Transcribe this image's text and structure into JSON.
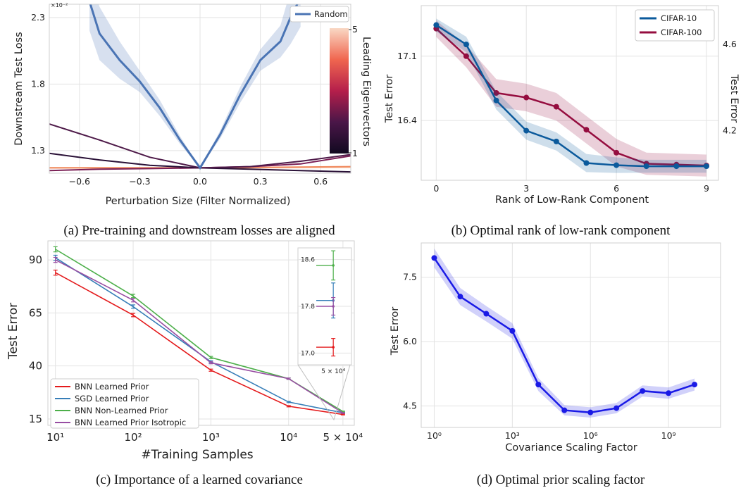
{
  "captions": {
    "a": "(a) Pre-training and downstream losses are aligned",
    "b": "(b) Optimal rank of low-rank component",
    "c": "(c) Importance of a learned covariance",
    "d": "(d) Optimal prior scaling factor"
  },
  "chart_data": [
    {
      "id": "a",
      "type": "line",
      "title": "",
      "xlabel": "Perturbation Size (Filter Normalized)",
      "ylabel": "Downstream Test Loss",
      "y_exponent_label": "×10⁻²",
      "xlim": [
        -0.75,
        0.75
      ],
      "ylim": [
        1.13,
        2.4
      ],
      "xticks": [
        -0.6,
        -0.3,
        0.0,
        0.3,
        0.6
      ],
      "xtick_labels": [
        "−0.6",
        "−0.3",
        "0.0",
        "0.3",
        "0.6"
      ],
      "yticks": [
        1.3,
        1.8,
        2.3
      ],
      "ytick_labels": [
        "1.3",
        "1.8",
        "2.3"
      ],
      "legend": [
        "Random"
      ],
      "colorbar": {
        "label": "Leading Eigenvectors",
        "min": 1,
        "max": 5,
        "tick_labels": [
          "1",
          "5"
        ]
      },
      "series": [
        {
          "name": "Random",
          "color": "#4a74b4",
          "x": [
            -0.55,
            -0.5,
            -0.4,
            -0.3,
            -0.2,
            -0.1,
            0.0,
            0.1,
            0.2,
            0.3,
            0.4,
            0.45,
            0.5
          ],
          "y": [
            2.42,
            2.18,
            1.98,
            1.82,
            1.62,
            1.38,
            1.17,
            1.42,
            1.72,
            1.98,
            2.12,
            2.3,
            2.45
          ],
          "band": [
            0.22,
            0.2,
            0.14,
            0.08,
            0.06,
            0.03,
            0.0,
            0.03,
            0.06,
            0.08,
            0.12,
            0.2,
            0.22
          ]
        },
        {
          "color": "#4e1a49",
          "x": [
            -0.75,
            -0.5,
            -0.25,
            0.0,
            0.25,
            0.5,
            0.75
          ],
          "y": [
            1.5,
            1.38,
            1.25,
            1.17,
            1.18,
            1.22,
            1.27
          ]
        },
        {
          "color": "#2a1137",
          "x": [
            -0.75,
            -0.5,
            -0.25,
            0.0,
            0.25,
            0.5,
            0.75
          ],
          "y": [
            1.28,
            1.23,
            1.19,
            1.17,
            1.16,
            1.15,
            1.14
          ]
        },
        {
          "color": "#7a1f55",
          "x": [
            -0.75,
            -0.5,
            -0.25,
            0.0,
            0.25,
            0.5,
            0.75
          ],
          "y": [
            1.15,
            1.16,
            1.165,
            1.17,
            1.18,
            1.2,
            1.26
          ]
        },
        {
          "color": "#f08a5f",
          "x": [
            -0.75,
            0.0,
            0.75
          ],
          "y": [
            1.17,
            1.17,
            1.18
          ]
        },
        {
          "color": "#f6c3a3",
          "x": [
            -0.75,
            0.0,
            0.75
          ],
          "y": [
            1.172,
            1.17,
            1.175
          ]
        }
      ]
    },
    {
      "id": "b",
      "type": "line",
      "title": "",
      "xlabel": "Rank of Low-Rank Component",
      "ylabel": "Test Error",
      "ylabel_right": "Test Error",
      "xlim": [
        -0.5,
        9.4
      ],
      "xticks": [
        0,
        3,
        6,
        9
      ],
      "xtick_labels": [
        "0",
        "3",
        "6",
        "9"
      ],
      "ylim": [
        15.75,
        17.65
      ],
      "yticks": [
        16.4,
        17.1
      ],
      "ytick_labels": [
        "16.4",
        "17.1"
      ],
      "ylim_right": [
        3.97,
        4.78
      ],
      "yticks_right": [
        4.2,
        4.6
      ],
      "ytick_labels_right": [
        "4.2",
        "4.6"
      ],
      "legend": [
        "CIFAR-10",
        "CIFAR-100"
      ],
      "series": [
        {
          "name": "CIFAR-10",
          "axis": "right",
          "color": "#0b5a9c",
          "x": [
            0,
            1,
            2,
            3,
            4,
            5,
            6,
            7,
            8,
            9
          ],
          "y": [
            4.69,
            4.6,
            4.34,
            4.2,
            4.15,
            4.05,
            4.04,
            4.035,
            4.035,
            4.035
          ],
          "band": [
            0.01,
            0.012,
            0.014,
            0.014,
            0.014,
            0.014,
            0.012,
            0.01,
            0.01,
            0.01
          ]
        },
        {
          "name": "CIFAR-100",
          "axis": "left",
          "color": "#950d3f",
          "x": [
            0,
            1,
            2,
            3,
            4,
            5,
            6,
            7,
            8,
            9
          ],
          "y": [
            17.4,
            17.1,
            16.7,
            16.65,
            16.55,
            16.3,
            16.05,
            15.93,
            15.92,
            15.91
          ],
          "band": [
            0.03,
            0.04,
            0.05,
            0.05,
            0.05,
            0.05,
            0.05,
            0.04,
            0.04,
            0.04
          ]
        }
      ]
    },
    {
      "id": "c",
      "type": "line",
      "title": "",
      "xlabel": "#Training Samples",
      "ylabel": "Test Error",
      "xscale": "log",
      "xlim": [
        8,
        70000
      ],
      "xticks": [
        10,
        100,
        1000,
        10000,
        50000
      ],
      "xtick_labels": [
        "10¹",
        "10²",
        "10³",
        "10⁴",
        "5 × 10⁴"
      ],
      "ylim": [
        12,
        99
      ],
      "yticks": [
        15,
        40,
        65,
        90
      ],
      "ytick_labels": [
        "15",
        "40",
        "65",
        "90"
      ],
      "legend": [
        "BNN Learned Prior",
        "SGD Learned Prior",
        "BNN Non-Learned Prior",
        "BNN Learned Prior Isotropic"
      ],
      "x": [
        10,
        100,
        1000,
        10000,
        50000
      ],
      "series": [
        {
          "name": "BNN Learned Prior",
          "color": "#e41a1c",
          "values": [
            84,
            64,
            38,
            21,
            17.1
          ],
          "err": [
            1.2,
            0.8,
            0.5,
            0.3,
            0.2
          ]
        },
        {
          "name": "SGD Learned Prior",
          "color": "#377eb8",
          "values": [
            91,
            68,
            42,
            23,
            17.9
          ],
          "err": [
            1.2,
            0.8,
            0.5,
            0.3,
            0.2
          ]
        },
        {
          "name": "BNN Non-Learned Prior",
          "color": "#4daf4a",
          "values": [
            95,
            73,
            44,
            34,
            18.5
          ],
          "err": [
            1.2,
            0.8,
            0.5,
            0.3,
            0.2
          ]
        },
        {
          "name": "BNN Learned Prior Isotropic",
          "color": "#984ea3",
          "values": [
            90,
            71,
            41.5,
            34,
            17.8
          ],
          "err": [
            1.2,
            0.8,
            0.5,
            0.3,
            0.2
          ]
        }
      ],
      "inset": {
        "x_label": "5 × 10⁴",
        "ylim": [
          16.8,
          18.8
        ],
        "yticks": [
          17.0,
          17.8,
          18.6
        ],
        "ytick_labels": [
          "17.0",
          "17.8",
          "18.6"
        ],
        "values": [
          17.1,
          17.9,
          18.5,
          17.8
        ],
        "err": [
          0.15,
          0.3,
          0.25,
          0.15
        ]
      }
    },
    {
      "id": "d",
      "type": "line",
      "title": "",
      "xlabel": "Covariance Scaling Factor",
      "ylabel": "Test Error",
      "xscale": "log",
      "xlim": [
        -0.5,
        11
      ],
      "xticks": [
        0,
        3,
        6,
        9
      ],
      "xtick_labels": [
        "10⁰",
        "10³",
        "10⁶",
        "10⁹"
      ],
      "ylim": [
        4.0,
        8.3
      ],
      "yticks": [
        4.5,
        6.0,
        7.5
      ],
      "ytick_labels": [
        "4.5",
        "6.0",
        "7.5"
      ],
      "series": [
        {
          "color": "#1a1ae6",
          "x": [
            0,
            1,
            2,
            3,
            4,
            5,
            6,
            7,
            8,
            9,
            10
          ],
          "y": [
            7.95,
            7.05,
            6.65,
            6.25,
            5.0,
            4.4,
            4.35,
            4.45,
            4.85,
            4.8,
            5.0
          ],
          "band": [
            0.22,
            0.2,
            0.18,
            0.18,
            0.15,
            0.12,
            0.12,
            0.12,
            0.13,
            0.13,
            0.14
          ]
        }
      ]
    }
  ]
}
